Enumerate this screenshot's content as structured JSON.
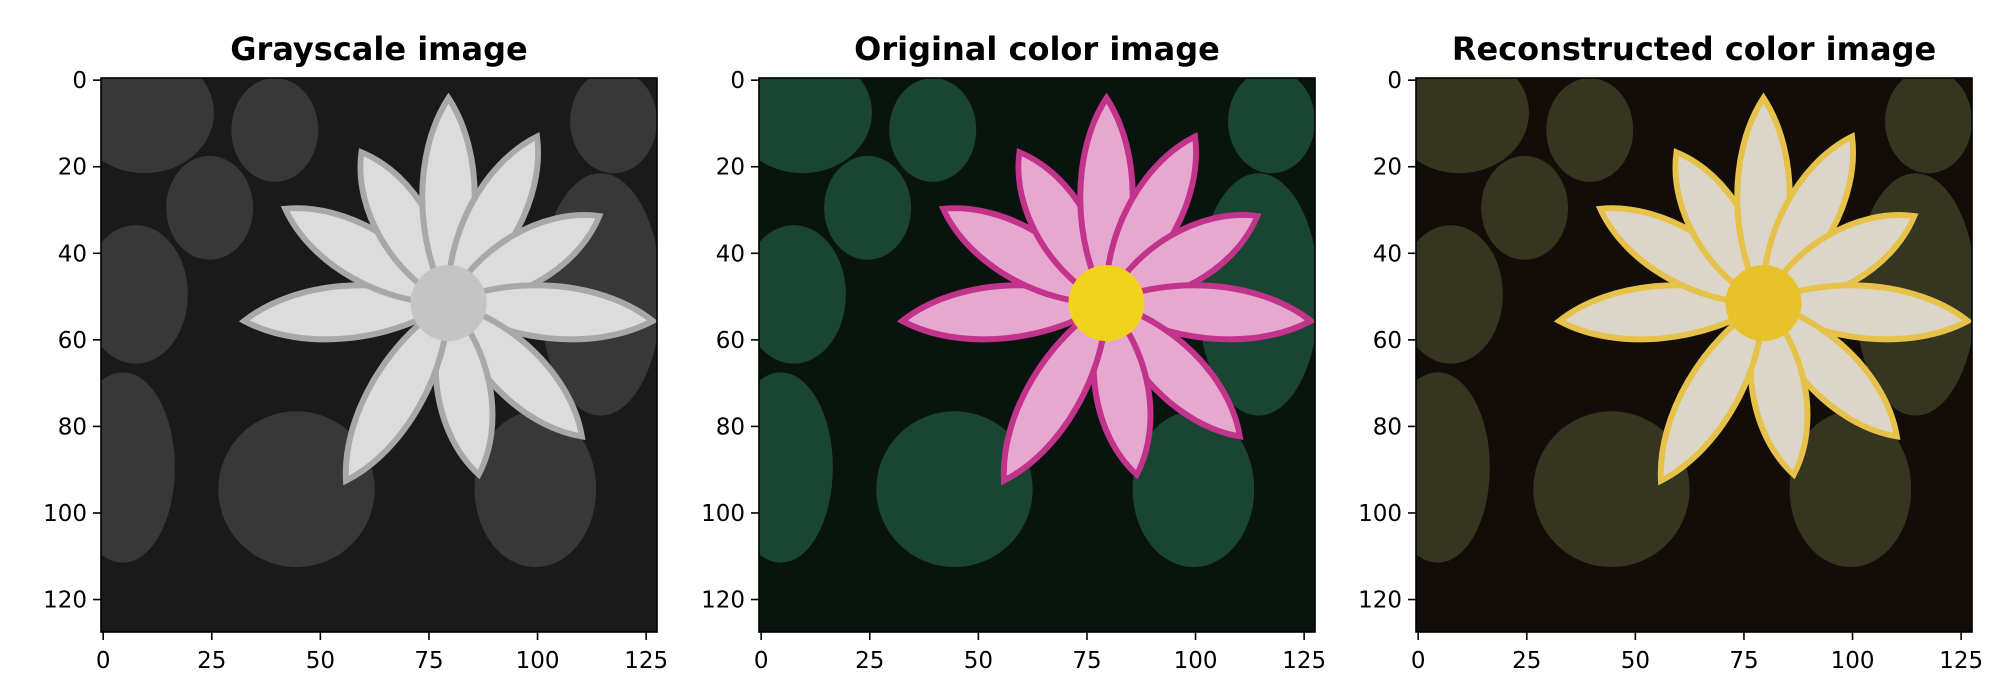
{
  "chart_data": [
    {
      "type": "image",
      "title": "Grayscale image",
      "colormap": "gray",
      "x_ticks": [
        "0",
        "25",
        "50",
        "75",
        "100",
        "125"
      ],
      "y_ticks": [
        "0",
        "20",
        "40",
        "60",
        "80",
        "100",
        "120"
      ],
      "xlim": [
        -0.5,
        127.5
      ],
      "ylim": [
        127.5,
        -0.5
      ],
      "grid": false,
      "palette": {
        "background": "#1a1a1a",
        "leaves": "#3c3c3c",
        "petals": "#dcdcdc",
        "petal_edge": "#a8a8a8",
        "center": "#c4c4c4"
      }
    },
    {
      "type": "image",
      "title": "Original color image",
      "colormap": "rgb",
      "x_ticks": [
        "0",
        "25",
        "50",
        "75",
        "100",
        "125"
      ],
      "y_ticks": [
        "0",
        "20",
        "40",
        "60",
        "80",
        "100",
        "120"
      ],
      "xlim": [
        -0.5,
        127.5
      ],
      "ylim": [
        127.5,
        -0.5
      ],
      "grid": false,
      "palette": {
        "background": "#0a140f",
        "leaves": "#1d4a37",
        "petals": "#e7a8cf",
        "petal_edge": "#c2338c",
        "center": "#f1d21f"
      }
    },
    {
      "type": "image",
      "title": "Reconstructed color image",
      "colormap": "rgb",
      "x_ticks": [
        "0",
        "25",
        "50",
        "75",
        "100",
        "125"
      ],
      "y_ticks": [
        "0",
        "20",
        "40",
        "60",
        "80",
        "100",
        "120"
      ],
      "xlim": [
        -0.5,
        127.5
      ],
      "ylim": [
        127.5,
        -0.5
      ],
      "grid": false,
      "palette": {
        "background": "#120d09",
        "leaves": "#3a3a24",
        "petals": "#dcd6c8",
        "petal_edge": "#e6c24a",
        "center": "#e8c229"
      }
    }
  ]
}
